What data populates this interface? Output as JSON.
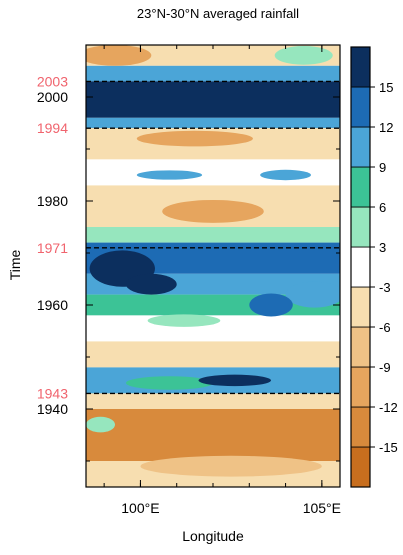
{
  "chart_data": {
    "type": "heatmap",
    "title": "23°N-30°N averaged rainfall",
    "xlabel": "Longitude",
    "ylabel": "Time",
    "xlim": [
      98.5,
      105.5
    ],
    "ylim": [
      1925,
      2010
    ],
    "x_ticks": [
      {
        "value": 100,
        "label": "100°E"
      },
      {
        "value": 105,
        "label": "105°E"
      }
    ],
    "y_ticks": [
      {
        "value": 1940,
        "label": "1940"
      },
      {
        "value": 1960,
        "label": "1960"
      },
      {
        "value": 1980,
        "label": "1980"
      },
      {
        "value": 2000,
        "label": "2000"
      }
    ],
    "marked_years": [
      {
        "value": 2003,
        "label": "2003"
      },
      {
        "value": 1994,
        "label": "1994"
      },
      {
        "value": 1971,
        "label": "1971"
      },
      {
        "value": 1943,
        "label": "1943"
      }
    ],
    "marked_color": "#f0646e",
    "colorbar": {
      "boundaries": [
        -18,
        -15,
        -12,
        -9,
        -6,
        -3,
        3,
        6,
        9,
        12,
        15,
        18
      ],
      "tick_labels": [
        "15",
        "12",
        "9",
        "6",
        "3",
        "-3",
        "-6",
        "-9",
        "-12",
        "-15"
      ],
      "colors": [
        "#c86e1e",
        "#d88a3c",
        "#e6a55e",
        "#efc286",
        "#f7deb0",
        "#ffffff",
        "#96e6be",
        "#3cc396",
        "#4ba5d7",
        "#1d6bb4",
        "#0c2f5e"
      ]
    },
    "bands": [
      {
        "from": 2006,
        "to": 2010,
        "value": -4
      },
      {
        "from": 2003,
        "to": 2006,
        "value": 10
      },
      {
        "from": 1996,
        "to": 2003,
        "value": 16
      },
      {
        "from": 1994,
        "to": 1996,
        "value": 10
      },
      {
        "from": 1988,
        "to": 1994,
        "value": -6
      },
      {
        "from": 1983,
        "to": 1988,
        "value": 2
      },
      {
        "from": 1975,
        "to": 1983,
        "value": -6
      },
      {
        "from": 1972,
        "to": 1975,
        "value": 4
      },
      {
        "from": 1966,
        "to": 1972,
        "value": 13
      },
      {
        "from": 1962,
        "to": 1966,
        "value": 11
      },
      {
        "from": 1958,
        "to": 1962,
        "value": 7
      },
      {
        "from": 1953,
        "to": 1958,
        "value": 2
      },
      {
        "from": 1948,
        "to": 1953,
        "value": -4
      },
      {
        "from": 1943,
        "to": 1948,
        "value": 10
      },
      {
        "from": 1940,
        "to": 1943,
        "value": -4
      },
      {
        "from": 1930,
        "to": 1940,
        "value": -15
      },
      {
        "from": 1925,
        "to": 1930,
        "value": -6
      }
    ],
    "blobs": [
      {
        "x": 99.3,
        "y": 2008,
        "rx": 1.0,
        "ry": 2.0,
        "value": -12
      },
      {
        "x": 104.5,
        "y": 2008,
        "rx": 0.8,
        "ry": 1.8,
        "value": 3
      },
      {
        "x": 101.5,
        "y": 1992,
        "rx": 1.6,
        "ry": 1.5,
        "value": -12
      },
      {
        "x": 100.8,
        "y": 1985,
        "rx": 0.9,
        "ry": 0.9,
        "value": 9
      },
      {
        "x": 104.0,
        "y": 1985,
        "rx": 0.7,
        "ry": 1.0,
        "value": 9
      },
      {
        "x": 102.0,
        "y": 1978,
        "rx": 1.4,
        "ry": 2.2,
        "value": -12
      },
      {
        "x": 99.5,
        "y": 1967,
        "rx": 0.9,
        "ry": 3.5,
        "value": 15
      },
      {
        "x": 100.3,
        "y": 1964,
        "rx": 0.7,
        "ry": 2.0,
        "value": 15
      },
      {
        "x": 104.8,
        "y": 1962,
        "rx": 0.8,
        "ry": 2.5,
        "value": 9
      },
      {
        "x": 103.6,
        "y": 1960,
        "rx": 0.6,
        "ry": 2.2,
        "value": 12
      },
      {
        "x": 101.2,
        "y": 1957,
        "rx": 1.0,
        "ry": 1.2,
        "value": 3
      },
      {
        "x": 100.8,
        "y": 1945,
        "rx": 1.2,
        "ry": 1.3,
        "value": 6
      },
      {
        "x": 102.6,
        "y": 1945.5,
        "rx": 1.0,
        "ry": 1.1,
        "value": 15
      },
      {
        "x": 98.9,
        "y": 1937,
        "rx": 0.4,
        "ry": 1.5,
        "value": 3
      },
      {
        "x": 102.5,
        "y": 1929,
        "rx": 2.5,
        "ry": 2.0,
        "value": -9
      }
    ]
  }
}
